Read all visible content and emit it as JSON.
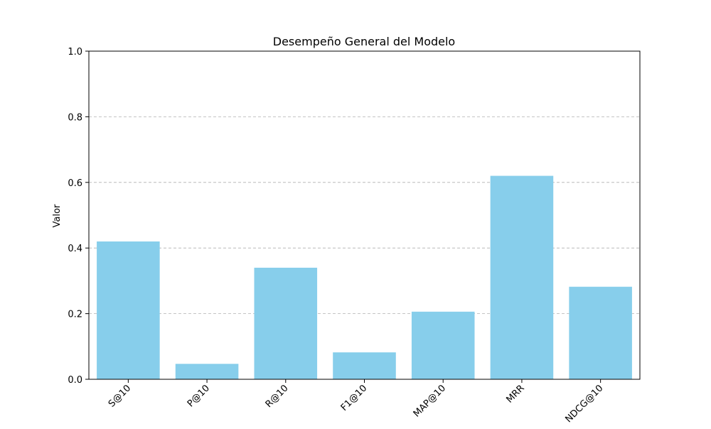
{
  "chart_data": {
    "type": "bar",
    "title": "Desempeño General del Modelo",
    "xlabel": "",
    "ylabel": "Valor",
    "categories": [
      "S@10",
      "P@10",
      "R@10",
      "F1@10",
      "MAP@10",
      "MRR",
      "NDCG@10"
    ],
    "values": [
      0.42,
      0.047,
      0.34,
      0.082,
      0.206,
      0.62,
      0.282
    ],
    "ylim": [
      0,
      1.0
    ],
    "yticks": [
      "0.0",
      "0.2",
      "0.4",
      "0.6",
      "0.8",
      "1.0"
    ],
    "grid": "horizontal dashed",
    "bar_color": "#87CEEB",
    "grid_color": "#b0b0b0"
  }
}
